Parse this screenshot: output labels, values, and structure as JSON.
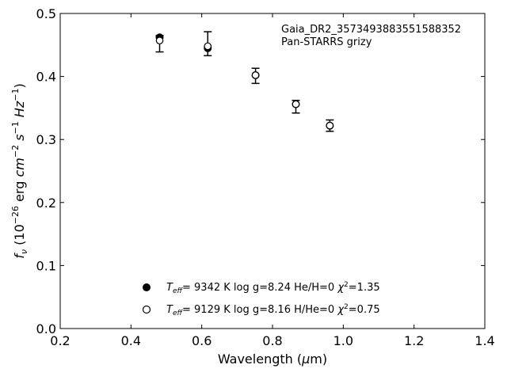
{
  "chart_data": {
    "type": "scatter",
    "title": "",
    "annotation_lines": [
      "Gaia_DR2_3573493883551588352",
      "Pan-STARRS grizy"
    ],
    "xlabel": "Wavelength (μm)",
    "ylabel": "f_ν (10^−26 erg cm^−2 s^−1 Hz^−1)",
    "xlim": [
      0.2,
      1.4
    ],
    "ylim": [
      0.0,
      0.5
    ],
    "xticks": [
      0.2,
      0.4,
      0.6,
      0.8,
      1.0,
      1.2,
      1.4
    ],
    "xtick_labels": [
      "0.2",
      "0.4",
      "0.6",
      "0.8",
      "1.0",
      "1.2",
      "1.4"
    ],
    "yticks": [
      0.0,
      0.1,
      0.2,
      0.3,
      0.4,
      0.5
    ],
    "ytick_labels": [
      "0.0",
      "0.1",
      "0.2",
      "0.3",
      "0.4",
      "0.5"
    ],
    "grid": false,
    "legend_position": "bottom-center",
    "observed": {
      "x": [
        0.481,
        0.617,
        0.752,
        0.866,
        0.962
      ],
      "y": [
        0.452,
        0.452,
        0.401,
        0.352,
        0.322
      ],
      "yerr": [
        0.013,
        0.019,
        0.012,
        0.01,
        0.009
      ]
    },
    "series": [
      {
        "name": "T_eff= 9342 K  log g=8.24  He/H=0  χ²=1.35",
        "marker": "filled",
        "x": [
          0.481,
          0.617,
          0.752,
          0.866,
          0.962
        ],
        "y": [
          0.462,
          0.445,
          0.402,
          0.356,
          0.322
        ]
      },
      {
        "name": "T_eff= 9129 K  log g=8.16  H/He=0  χ²=0.75",
        "marker": "open",
        "x": [
          0.481,
          0.617,
          0.752,
          0.866,
          0.962
        ],
        "y": [
          0.457,
          0.448,
          0.402,
          0.356,
          0.322
        ]
      }
    ]
  },
  "legend": {
    "items": [
      {
        "teff": "9342 K",
        "logg": "log g=8.24",
        "comp": "He/H=0",
        "chi": "=1.35"
      },
      {
        "teff": "9129 K",
        "logg": "log g=8.16",
        "comp": "H/He=0",
        "chi": "=0.75"
      }
    ]
  }
}
